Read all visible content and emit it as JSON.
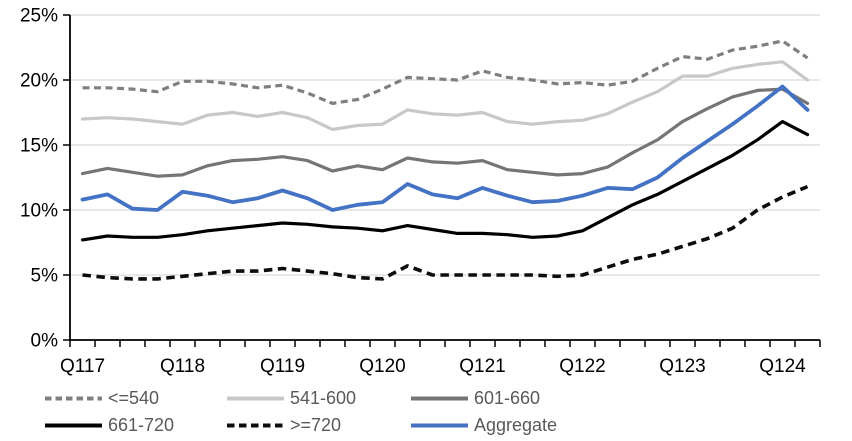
{
  "chart_data": {
    "type": "line",
    "title": "",
    "xlabel": "",
    "ylabel": "",
    "ylim": [
      0,
      25
    ],
    "y_tick_step": 5,
    "y_tick_labels": [
      "0%",
      "5%",
      "10%",
      "15%",
      "20%",
      "25%"
    ],
    "n_points": 30,
    "x_tick_labels": [
      {
        "index": 0,
        "text": "Q117"
      },
      {
        "index": 4,
        "text": "Q118"
      },
      {
        "index": 8,
        "text": "Q119"
      },
      {
        "index": 12,
        "text": "Q120"
      },
      {
        "index": 16,
        "text": "Q121"
      },
      {
        "index": 20,
        "text": "Q122"
      },
      {
        "index": 24,
        "text": "Q123"
      },
      {
        "index": 28,
        "text": "Q124"
      }
    ],
    "grid": "horizontal",
    "legend_position": "bottom",
    "axis_color": "#000000",
    "gridline_color": "#d9d9d9",
    "tick_label_color": "#000000",
    "legend_text_color": "#595959",
    "series": [
      {
        "name": "<=540",
        "color": "#7f7f7f",
        "dash": "7 4.5",
        "width": 3.2,
        "values": [
          19.4,
          19.4,
          19.3,
          19.1,
          19.9,
          19.9,
          19.7,
          19.4,
          19.6,
          19.0,
          18.2,
          18.5,
          19.3,
          20.2,
          20.1,
          20.0,
          20.7,
          20.2,
          20.0,
          19.7,
          19.8,
          19.6,
          19.9,
          20.9,
          21.8,
          21.6,
          22.3,
          22.6,
          23.0,
          21.7
        ]
      },
      {
        "name": "541-600",
        "color": "#c8c8c8",
        "dash": "",
        "width": 3.2,
        "values": [
          17.0,
          17.1,
          17.0,
          16.8,
          16.6,
          17.3,
          17.5,
          17.2,
          17.5,
          17.1,
          16.2,
          16.5,
          16.6,
          17.7,
          17.4,
          17.3,
          17.5,
          16.8,
          16.6,
          16.8,
          16.9,
          17.4,
          18.3,
          19.1,
          20.3,
          20.3,
          20.9,
          21.2,
          21.4,
          20.0
        ]
      },
      {
        "name": "601-660",
        "color": "#757575",
        "dash": "",
        "width": 3.2,
        "values": [
          12.8,
          13.2,
          12.9,
          12.6,
          12.7,
          13.4,
          13.8,
          13.9,
          14.1,
          13.8,
          13.0,
          13.4,
          13.1,
          14.0,
          13.7,
          13.6,
          13.8,
          13.1,
          12.9,
          12.7,
          12.8,
          13.3,
          14.4,
          15.4,
          16.8,
          17.8,
          18.7,
          19.2,
          19.3,
          18.2
        ]
      },
      {
        "name": "661-720",
        "color": "#000000",
        "dash": "",
        "width": 3.2,
        "values": [
          7.7,
          8.0,
          7.9,
          7.9,
          8.1,
          8.4,
          8.6,
          8.8,
          9.0,
          8.9,
          8.7,
          8.6,
          8.4,
          8.8,
          8.5,
          8.2,
          8.2,
          8.1,
          7.9,
          8.0,
          8.4,
          9.4,
          10.4,
          11.2,
          12.2,
          13.2,
          14.2,
          15.4,
          16.8,
          15.8
        ]
      },
      {
        "name": ">=720",
        "color": "#0d0d0d",
        "dash": "8.5 5.5",
        "width": 3.6,
        "values": [
          5.0,
          4.8,
          4.7,
          4.7,
          4.9,
          5.1,
          5.3,
          5.3,
          5.5,
          5.3,
          5.1,
          4.8,
          4.7,
          5.7,
          5.0,
          5.0,
          5.0,
          5.0,
          5.0,
          4.9,
          5.0,
          5.6,
          6.2,
          6.6,
          7.2,
          7.8,
          8.6,
          10.0,
          11.0,
          11.8
        ]
      },
      {
        "name": "Aggregate",
        "color": "#4472c4",
        "dash": "",
        "width": 3.8,
        "values": [
          10.8,
          11.2,
          10.1,
          10.0,
          11.4,
          11.1,
          10.6,
          10.9,
          11.5,
          10.9,
          10.0,
          10.4,
          10.6,
          12.0,
          11.2,
          10.9,
          11.7,
          11.1,
          10.6,
          10.7,
          11.1,
          11.7,
          11.6,
          12.5,
          14.0,
          15.3,
          16.6,
          18.0,
          19.5,
          17.7
        ]
      }
    ]
  }
}
